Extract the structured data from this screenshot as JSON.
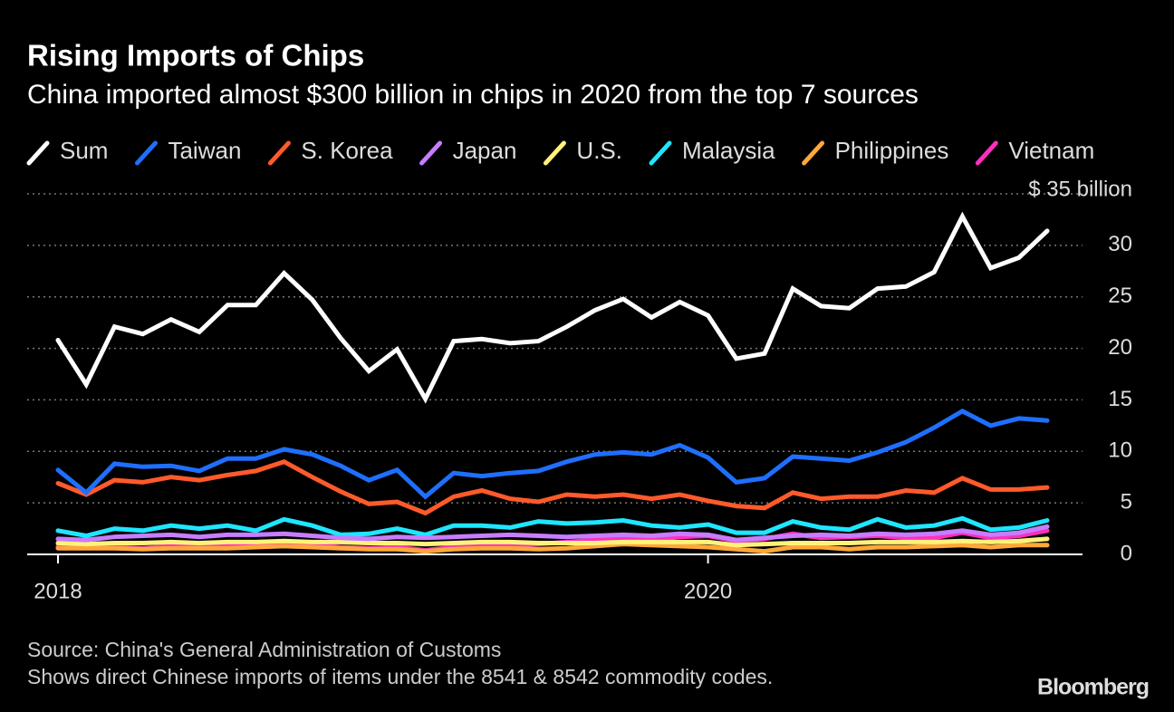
{
  "chart_data": {
    "type": "line",
    "title": "Rising Imports of Chips",
    "subtitle": "China imported almost $300 billion in chips in 2020 from the top 7 sources",
    "source": "Source: China's General Administration of Customs",
    "note": "Shows direct Chinese imports of items under the 8541 & 8542 commodity codes.",
    "brand": "Bloomberg",
    "categories": [
      "2018",
      null,
      null,
      null,
      null,
      null,
      null,
      null,
      null,
      null,
      null,
      null,
      null,
      null,
      null,
      null,
      null,
      null,
      null,
      null,
      null,
      null,
      null,
      "2020",
      null,
      null,
      null,
      null,
      null,
      null,
      null,
      null,
      null,
      null,
      null,
      null
    ],
    "ylim": [
      0,
      35
    ],
    "yticks": [
      0,
      5,
      10,
      15,
      20,
      25,
      30,
      {
        "value": 35,
        "label": "$ 35 billion"
      }
    ],
    "grid": true,
    "legend": "top",
    "series": [
      {
        "name": "Sum",
        "color": "#ffffff",
        "values": [
          20.8,
          16.5,
          22.1,
          21.4,
          22.8,
          21.6,
          24.2,
          24.2,
          27.3,
          24.7,
          21,
          17.8,
          19.9,
          15.1,
          20.7,
          20.9,
          20.5,
          20.7,
          22.1,
          23.7,
          24.8,
          23,
          24.5,
          23.2,
          19,
          19.5,
          25.8,
          24.1,
          23.9,
          25.8,
          26,
          27.4,
          32.8,
          27.8,
          28.8,
          31.4
        ]
      },
      {
        "name": "Taiwan",
        "color": "#1f6fff",
        "values": [
          8.2,
          6,
          8.8,
          8.5,
          8.6,
          8.1,
          9.3,
          9.3,
          10.2,
          9.7,
          8.6,
          7.2,
          8.2,
          5.6,
          7.9,
          7.6,
          7.9,
          8.1,
          9,
          9.7,
          9.9,
          9.7,
          10.6,
          9.4,
          7,
          7.4,
          9.5,
          9.3,
          9.1,
          9.9,
          10.9,
          12.3,
          13.9,
          12.5,
          13.2,
          13
        ]
      },
      {
        "name": "S. Korea",
        "color": "#ff5a2b",
        "values": [
          6.9,
          5.8,
          7.2,
          7,
          7.5,
          7.2,
          7.7,
          8.1,
          9,
          7.5,
          6.1,
          4.9,
          5.1,
          4,
          5.6,
          6.2,
          5.4,
          5.1,
          5.8,
          5.6,
          5.8,
          5.4,
          5.8,
          5.2,
          4.7,
          4.5,
          6,
          5.4,
          5.6,
          5.6,
          6.2,
          6,
          7.4,
          6.3,
          6.3,
          6.5
        ]
      },
      {
        "name": "Japan",
        "color": "#c77dff",
        "values": [
          1.5,
          1.4,
          1.7,
          1.8,
          1.9,
          1.7,
          1.9,
          1.9,
          2,
          1.8,
          1.6,
          1.5,
          1.7,
          1.6,
          1.7,
          1.8,
          1.9,
          1.8,
          1.7,
          1.8,
          1.9,
          1.8,
          2,
          1.9,
          1.4,
          1.6,
          1.8,
          1.9,
          1.8,
          2,
          1.9,
          2,
          2.3,
          1.9,
          2.1,
          2.7
        ]
      },
      {
        "name": "U.S.",
        "color": "#fff27a",
        "values": [
          1.1,
          1,
          1.1,
          1.1,
          1.2,
          1.1,
          1.2,
          1.2,
          1.3,
          1.2,
          1.2,
          1.1,
          1.1,
          1,
          1.1,
          1.2,
          1.2,
          1.1,
          1.1,
          1.1,
          1.2,
          1.2,
          1.2,
          1.2,
          0.9,
          1,
          1.1,
          1.1,
          1.1,
          1.2,
          1.2,
          1.2,
          1.3,
          1.2,
          1.3,
          1.5
        ]
      },
      {
        "name": "Malaysia",
        "color": "#1ee6ff",
        "values": [
          2.3,
          1.8,
          2.5,
          2.3,
          2.8,
          2.5,
          2.8,
          2.3,
          3.4,
          2.8,
          1.9,
          2,
          2.5,
          1.9,
          2.8,
          2.8,
          2.6,
          3.2,
          3,
          3.1,
          3.3,
          2.8,
          2.6,
          2.9,
          2.1,
          2.1,
          3.2,
          2.6,
          2.4,
          3.4,
          2.6,
          2.8,
          3.5,
          2.4,
          2.6,
          3.3
        ]
      },
      {
        "name": "Philippines",
        "color": "#ffa83a",
        "values": [
          0.6,
          0.6,
          0.6,
          0.5,
          0.6,
          0.6,
          0.6,
          0.7,
          0.8,
          0.7,
          0.6,
          0.5,
          0.5,
          0.3,
          0.5,
          0.6,
          0.6,
          0.5,
          0.6,
          0.8,
          1,
          0.9,
          0.8,
          0.7,
          0.5,
          0.3,
          0.7,
          0.7,
          0.5,
          0.7,
          0.7,
          0.8,
          0.9,
          0.7,
          0.9,
          0.9
        ]
      },
      {
        "name": "Vietnam",
        "color": "#ff2fbd",
        "values": [
          0.8,
          0.8,
          0.7,
          0.6,
          0.8,
          0.7,
          0.8,
          0.9,
          1.1,
          0.9,
          0.7,
          0.6,
          0.7,
          0.4,
          0.7,
          0.8,
          0.9,
          1,
          1.2,
          1.4,
          1.6,
          1.4,
          1.7,
          1.8,
          1.3,
          1.5,
          2,
          1.6,
          1.7,
          1.8,
          1.6,
          1.6,
          2.1,
          1.6,
          1.8,
          2.3
        ]
      }
    ]
  }
}
